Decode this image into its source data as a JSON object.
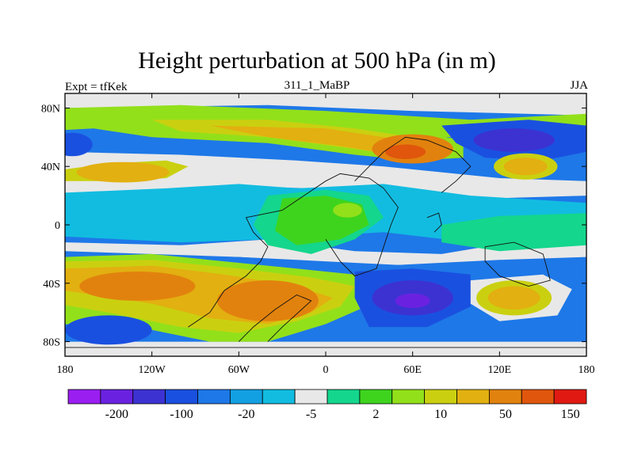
{
  "title": "Height perturbation at 500 hPa (in m)",
  "left_string": "Expt = tfKek",
  "center_string": "311_1_MaBP",
  "right_string": "JJA",
  "colors": {
    "c_m300": "#9a1ef0",
    "c_m200": "#6a22e0",
    "c_m100": "#3c32d2",
    "c_m50": "#1a50e0",
    "c_m20": "#1e78e8",
    "c_m10": "#12a0e2",
    "c_m5": "#12bce0",
    "c_zero": "#e8e8e8",
    "c_p2": "#14d68c",
    "c_p5": "#3ed41e",
    "c_p10": "#92e01a",
    "c_p20": "#cad010",
    "c_p50": "#e2b010",
    "c_p100": "#e2820e",
    "c_p150": "#e0560c",
    "c_p200": "#e01a12"
  },
  "chart_data": {
    "type": "heatmap",
    "title": "Height perturbation at 500 hPa (in m)",
    "subtitle": "311_1_MaBP",
    "left_annotation": "Expt = tfKek",
    "season": "JJA",
    "units": "m",
    "xlim": [
      -180,
      180
    ],
    "ylim": [
      -90,
      90
    ],
    "x_ticks": [
      {
        "value": -180,
        "label": "180"
      },
      {
        "value": -120,
        "label": "120W"
      },
      {
        "value": -60,
        "label": "60W"
      },
      {
        "value": 0,
        "label": "0"
      },
      {
        "value": 60,
        "label": "60E"
      },
      {
        "value": 120,
        "label": "120E"
      },
      {
        "value": 180,
        "label": "180"
      }
    ],
    "y_ticks": [
      {
        "value": 80,
        "label": "80N"
      },
      {
        "value": 40,
        "label": "40N"
      },
      {
        "value": 0,
        "label": "0"
      },
      {
        "value": -40,
        "label": "40S"
      },
      {
        "value": -80,
        "label": "80S"
      }
    ],
    "colorbar": {
      "levels": [
        -300,
        -200,
        -150,
        -100,
        -50,
        -20,
        -10,
        -5,
        -2,
        2,
        5,
        10,
        20,
        50,
        100,
        150,
        200
      ],
      "labels": [
        {
          "after_level": -200,
          "label": "-200"
        },
        {
          "after_level": -100,
          "label": "-100"
        },
        {
          "after_level": -20,
          "label": "-20"
        },
        {
          "after_level": -5,
          "label": "-5"
        },
        {
          "after_level": 2,
          "label": "2"
        },
        {
          "after_level": 10,
          "label": "10"
        },
        {
          "after_level": 50,
          "label": "50"
        },
        {
          "after_level": 150,
          "label": "150"
        }
      ],
      "boxes": [
        {
          "color_key": "c_m300"
        },
        {
          "color_key": "c_m200"
        },
        {
          "color_key": "c_m100"
        },
        {
          "color_key": "c_m50"
        },
        {
          "color_key": "c_m20"
        },
        {
          "color_key": "c_m10"
        },
        {
          "color_key": "c_m5"
        },
        {
          "color_key": "c_zero"
        },
        {
          "color_key": "c_p2"
        },
        {
          "color_key": "c_p5"
        },
        {
          "color_key": "c_p10"
        },
        {
          "color_key": "c_p20"
        },
        {
          "color_key": "c_p50"
        },
        {
          "color_key": "c_p100"
        },
        {
          "color_key": "c_p150"
        },
        {
          "color_key": "c_p200"
        }
      ]
    },
    "features": [
      {
        "name": "southern-mid-latitude-high",
        "lon_range": [
          -180,
          40
        ],
        "lat_range": [
          -72,
          -22
        ],
        "peak_m": 100
      },
      {
        "name": "south-atlantic-high",
        "lon_range": [
          -60,
          10
        ],
        "lat_range": [
          -75,
          -45
        ],
        "peak_m": 100
      },
      {
        "name": "north-africa-eurasia-high",
        "lon_range": [
          20,
          90
        ],
        "lat_range": [
          28,
          65
        ],
        "peak_m": 150
      },
      {
        "name": "north-pacific-high",
        "lon_range": [
          -180,
          -100
        ],
        "lat_range": [
          25,
          45
        ],
        "peak_m": 100
      },
      {
        "name": "northwest-pacific-high",
        "lon_range": [
          120,
          155
        ],
        "lat_range": [
          30,
          50
        ],
        "peak_m": 100
      },
      {
        "name": "south-pacific-high",
        "lon_range": [
          100,
          160
        ],
        "lat_range": [
          -62,
          -38
        ],
        "peak_m": 100
      },
      {
        "name": "indian-ocean-southern-low",
        "lon_range": [
          25,
          95
        ],
        "lat_range": [
          -70,
          -30
        ],
        "peak_m": -150
      },
      {
        "name": "north-pacific-low",
        "lon_range": [
          80,
          160
        ],
        "lat_range": [
          40,
          70
        ],
        "peak_m": -50
      },
      {
        "name": "tropical-west-low",
        "lon_range": [
          -180,
          -90
        ],
        "lat_range": [
          -15,
          25
        ],
        "peak_m": -10
      },
      {
        "name": "south-pacific-polar-low",
        "lon_range": [
          -180,
          -120
        ],
        "lat_range": [
          -85,
          -60
        ],
        "peak_m": -50
      },
      {
        "name": "tropical-africa-positive",
        "lon_range": [
          -40,
          40
        ],
        "lat_range": [
          -20,
          25
        ],
        "peak_m": 10
      }
    ]
  }
}
